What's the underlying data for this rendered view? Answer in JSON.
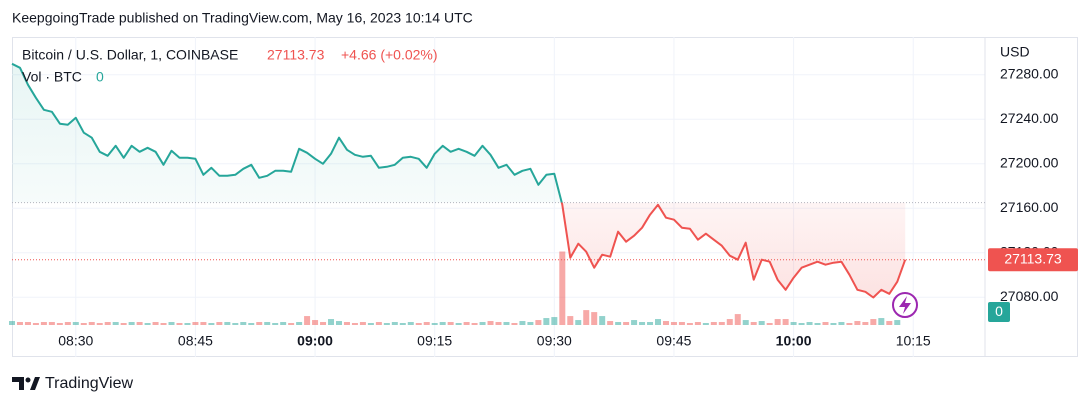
{
  "header": "KeepgoingTrade published on TradingView.com, May 16, 2023 10:14 UTC",
  "footer": "TradingView",
  "chart_data": {
    "type": "baseline",
    "symbol": "Bitcoin / U.S. Dollar, 1, COINBASE",
    "last_price": 27113.73,
    "change": "+4.66 (+0.02%)",
    "volume_title": "Vol · BTC",
    "last_volume": 0,
    "currency": "USD",
    "x": [
      "08:22",
      "08:23",
      "08:24",
      "08:25",
      "08:26",
      "08:27",
      "08:28",
      "08:29",
      "08:30",
      "08:31",
      "08:32",
      "08:33",
      "08:34",
      "08:35",
      "08:36",
      "08:37",
      "08:38",
      "08:39",
      "08:40",
      "08:41",
      "08:42",
      "08:43",
      "08:44",
      "08:45",
      "08:46",
      "08:47",
      "08:48",
      "08:49",
      "08:50",
      "08:51",
      "08:52",
      "08:53",
      "08:54",
      "08:55",
      "08:56",
      "08:57",
      "08:58",
      "08:59",
      "09:00",
      "09:01",
      "09:02",
      "09:03",
      "09:04",
      "09:05",
      "09:06",
      "09:07",
      "09:08",
      "09:09",
      "09:10",
      "09:11",
      "09:12",
      "09:13",
      "09:14",
      "09:15",
      "09:16",
      "09:17",
      "09:18",
      "09:19",
      "09:20",
      "09:21",
      "09:22",
      "09:23",
      "09:24",
      "09:25",
      "09:26",
      "09:27",
      "09:28",
      "09:29",
      "09:30",
      "09:31",
      "09:32",
      "09:33",
      "09:34",
      "09:35",
      "09:36",
      "09:37",
      "09:38",
      "09:39",
      "09:40",
      "09:41",
      "09:42",
      "09:43",
      "09:44",
      "09:45",
      "09:46",
      "09:47",
      "09:48",
      "09:49",
      "09:50",
      "09:51",
      "09:52",
      "09:53",
      "09:54",
      "09:55",
      "09:56",
      "09:57",
      "09:58",
      "09:59",
      "10:00",
      "10:01",
      "10:02",
      "10:03",
      "10:04",
      "10:05",
      "10:06",
      "10:07",
      "10:08",
      "10:09",
      "10:10",
      "10:11",
      "10:12",
      "10:13",
      "10:14"
    ],
    "values": [
      27289.9,
      27286.3,
      27271.0,
      27259.3,
      27248.5,
      27246.7,
      27236.0,
      27235.1,
      27241.3,
      27227.9,
      27223.4,
      27210.8,
      27207.2,
      27216.2,
      27205.4,
      27216.2,
      27210.8,
      27214.4,
      27210.8,
      27199.1,
      27211.7,
      27205.4,
      27205.4,
      27204.5,
      27190.1,
      27196.4,
      27189.2,
      27189.2,
      27190.1,
      27195.5,
      27199.1,
      27187.4,
      27189.2,
      27193.7,
      27193.7,
      27192.8,
      27213.5,
      27209.9,
      27204.5,
      27200.0,
      27209.0,
      27223.4,
      27212.6,
      27208.1,
      27206.3,
      27207.2,
      27196.4,
      27197.3,
      27199.1,
      27205.4,
      27206.3,
      27204.5,
      27196.4,
      27209.0,
      27216.2,
      27210.8,
      27213.5,
      27210.8,
      27207.2,
      27216.2,
      27208.1,
      27196.4,
      27199.1,
      27190.1,
      27193.7,
      27195.5,
      27181.1,
      27190.1,
      27191.0,
      27163.1,
      27115.5,
      27128.1,
      27120.9,
      27106.5,
      27118.2,
      27116.4,
      27138.9,
      27129.9,
      27135.3,
      27142.5,
      27154.2,
      27163.1,
      27151.5,
      27149.7,
      27142.5,
      27141.6,
      27131.7,
      27137.1,
      27131.7,
      27126.3,
      27117.3,
      27113.7,
      27129.0,
      27095.7,
      27113.7,
      27111.9,
      27095.7,
      27086.7,
      27097.5,
      27106.5,
      27109.2,
      27111.9,
      27109.2,
      27111.0,
      27111.9,
      27100.2,
      27086.7,
      27084.9,
      27079.7,
      27086.7,
      27083.1,
      27093.9,
      27113.73
    ],
    "volume": [
      0.4,
      0.3,
      0.3,
      0.2,
      0.3,
      0.3,
      0.2,
      0.3,
      0.3,
      0.2,
      0.3,
      0.2,
      0.3,
      0.3,
      0.2,
      0.3,
      0.3,
      0.2,
      0.3,
      0.2,
      0.3,
      0.2,
      0.2,
      0.3,
      0.3,
      0.2,
      0.3,
      0.3,
      0.2,
      0.3,
      0.2,
      0.3,
      0.3,
      0.2,
      0.3,
      0.2,
      0.3,
      0.9,
      0.5,
      0.3,
      0.6,
      0.4,
      0.3,
      0.2,
      0.3,
      0.2,
      0.3,
      0.2,
      0.3,
      0.2,
      0.3,
      0.2,
      0.3,
      0.2,
      0.3,
      0.3,
      0.2,
      0.3,
      0.2,
      0.3,
      0.4,
      0.3,
      0.3,
      0.2,
      0.4,
      0.3,
      0.5,
      0.7,
      0.8,
      7.4,
      0.9,
      0.5,
      1.5,
      1.3,
      0.9,
      0.4,
      0.3,
      0.3,
      0.5,
      0.3,
      0.3,
      0.6,
      0.4,
      0.3,
      0.3,
      0.2,
      0.3,
      0.2,
      0.3,
      0.3,
      0.6,
      1.1,
      0.5,
      0.3,
      0.4,
      0.2,
      0.6,
      0.6,
      0.3,
      0.2,
      0.3,
      0.2,
      0.3,
      0.2,
      0.3,
      0.2,
      0.4,
      0.3,
      0.6,
      0.7,
      0.4,
      0.5,
      0.0
    ],
    "baseline": 27165,
    "up_color": "#26a69a",
    "down_color": "#ef5350",
    "xlim": [
      "08:22",
      "10:24"
    ],
    "xticks": [
      "08:30",
      "08:45",
      "09:00",
      "09:15",
      "09:30",
      "09:45",
      "10:00",
      "10:15"
    ],
    "ylim": [
      27055,
      27314
    ],
    "yticks": [
      {
        "value": 27280,
        "label": "27280.00"
      },
      {
        "value": 27240,
        "label": "27240.00"
      },
      {
        "value": 27200,
        "label": "27200.00"
      },
      {
        "value": 27160,
        "label": "27160.00"
      },
      {
        "value": 27120,
        "label": "27120.00"
      },
      {
        "value": 27080,
        "label": "27080.00"
      }
    ],
    "vlim": [
      0,
      29
    ],
    "grid": true
  }
}
